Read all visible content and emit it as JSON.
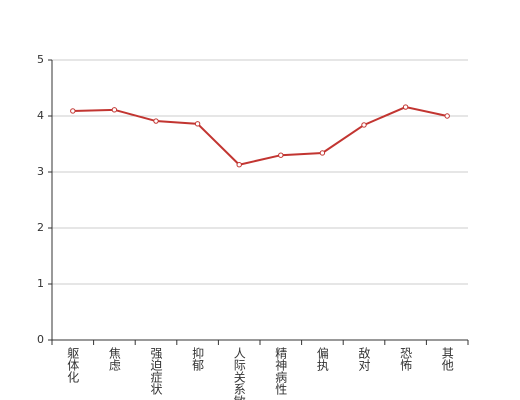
{
  "chart_data": {
    "type": "line",
    "categories": [
      "躯体化",
      "焦虑",
      "强迫症状",
      "抑郁",
      "人际关系敏感",
      "精神病性",
      "偏执",
      "敌对",
      "恐怖",
      "其他"
    ],
    "series": [
      {
        "color": "#c23531",
        "values": [
          4.09,
          4.11,
          3.91,
          3.86,
          3.13,
          3.3,
          3.34,
          3.84,
          4.16,
          4.0
        ]
      }
    ],
    "ylim": [
      0,
      5
    ],
    "yticks": [
      0,
      1,
      2,
      3,
      4,
      5
    ],
    "grid": true
  }
}
